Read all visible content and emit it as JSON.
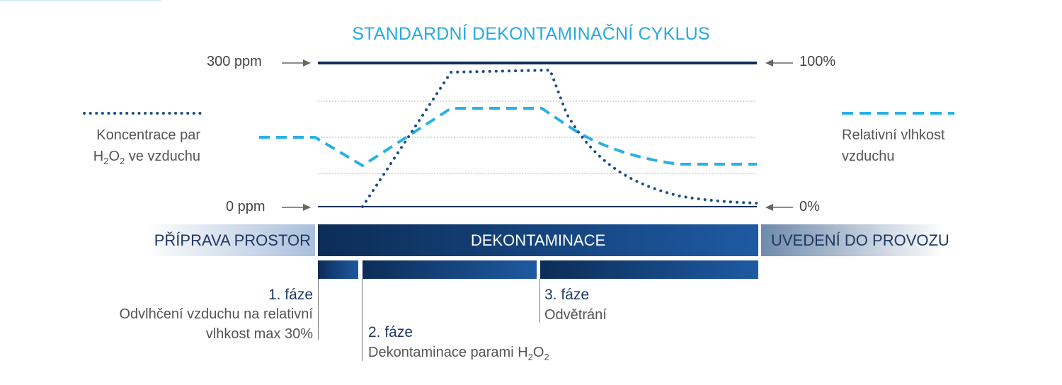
{
  "title": "STANDARDNÍ DEKONTAMINAČNÍ CYKLUS",
  "colors": {
    "title": "#29a9df",
    "navy": "#0d2f5c",
    "dotted_series": "#1d4f80",
    "dashed_series": "#29b0e6",
    "grid": "#b5b5b5",
    "prep_band": "#b3c6de",
    "main_band_dark": "#0c2d57",
    "main_band_light": "#1e5aa2",
    "comm_band": "#7c95b3"
  },
  "axis": {
    "left_top": "300 ppm",
    "left_bottom": "0 ppm",
    "right_top": "100%",
    "right_bottom": "0%"
  },
  "legend": {
    "left_line1": "Koncentrace par",
    "left_line2_pre": "H",
    "left_line2_sub1": "2",
    "left_line2_mid": "O",
    "left_line2_sub2": "2",
    "left_line2_post": " ve vzduchu",
    "right_line1": "Relativní vlhkost",
    "right_line2": "vzduchu"
  },
  "bands": {
    "prep": "PŘÍPRAVA PROSTOR",
    "main": "DEKONTAMINACE",
    "commissioning": "UVEDENÍ DO PROVOZU"
  },
  "phases": {
    "p1_title": "1. fáze",
    "p1_desc1": "Odvlhčení vzduchu na relativní",
    "p1_desc2": "vlhkost max 30%",
    "p2_title": "2. fáze",
    "p2_desc_pre": "Dekontaminace parami H",
    "p2_sub1": "2",
    "p2_mid": "O",
    "p2_sub2": "2",
    "p3_title": "3. fáze",
    "p3_desc": "Odvětrání"
  },
  "icons": [
    "arrow-right-icon",
    "arrow-left-icon"
  ]
}
